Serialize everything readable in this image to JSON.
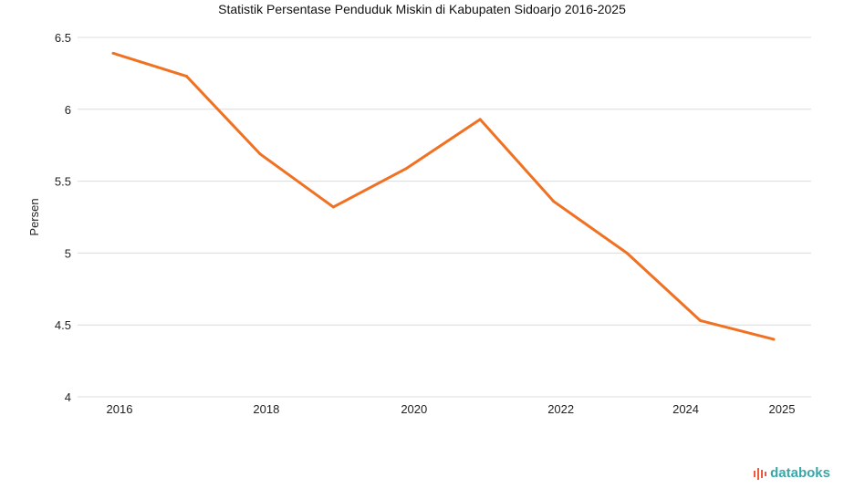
{
  "chart_data": {
    "type": "line",
    "title": "Statistik Persentase Penduduk Miskin di Kabupaten Sidoarjo 2016-2025",
    "xlabel": "",
    "ylabel": "Persen",
    "x": [
      2016,
      2017,
      2018,
      2019,
      2020,
      2021,
      2022,
      2023,
      2024,
      2025
    ],
    "series": [
      {
        "name": "Persentase Penduduk Miskin",
        "color": "#f07122",
        "values": [
          6.39,
          6.23,
          5.69,
          5.32,
          5.59,
          5.93,
          5.36,
          5.0,
          4.53,
          4.4
        ]
      }
    ],
    "x_tick_labels": [
      "2016",
      "2018",
      "2020",
      "2022",
      "2024",
      "2025"
    ],
    "y_ticks": [
      4,
      4.5,
      5,
      5.5,
      6,
      6.5
    ],
    "y_tick_labels": [
      "4",
      "4.5",
      "5",
      "5.5",
      "6",
      "6.5"
    ],
    "ylim": [
      4,
      6.5
    ],
    "grid": true,
    "legend": "none"
  },
  "branding": {
    "logo_text": "databoks",
    "logo_color": "#3aa6a8",
    "logo_accent": "#f05a3c"
  }
}
